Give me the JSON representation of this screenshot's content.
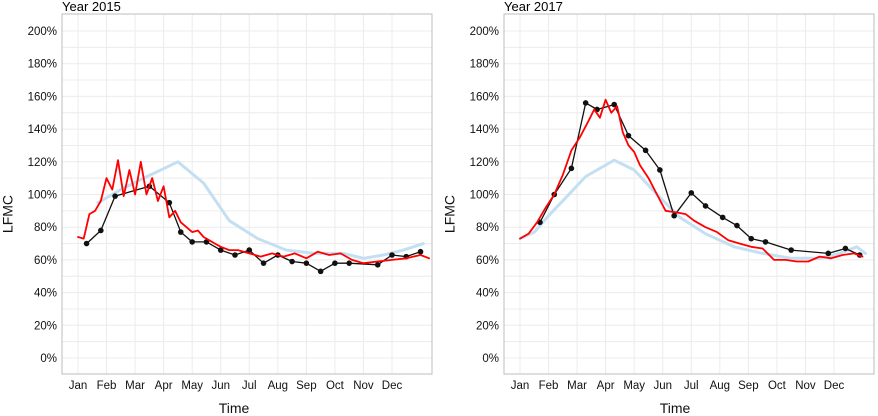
{
  "chart_data": [
    {
      "type": "line",
      "title": "Year 2015",
      "xlabel": "Time",
      "ylabel": "LFMC",
      "ylim": [
        0,
        200
      ],
      "yticks": [
        "0%",
        "20%",
        "40%",
        "60%",
        "80%",
        "100%",
        "120%",
        "140%",
        "160%",
        "180%",
        "200%"
      ],
      "x_months": [
        "Jan",
        "Feb",
        "Mar",
        "Apr",
        "May",
        "Jun",
        "Jul",
        "Aug",
        "Sep",
        "Oct",
        "Nov",
        "Dec"
      ],
      "colors": {
        "observed": "#111111",
        "daily": "#ff0000",
        "climatology": "#c5dff2"
      },
      "series": [
        {
          "key": "observed",
          "x": [
            1.3,
            1.8,
            2.3,
            3.5,
            4.2,
            4.6,
            5.0,
            5.5,
            6.0,
            6.5,
            7.0,
            7.5,
            8.0,
            8.5,
            9.0,
            9.5,
            10.0,
            10.5,
            11.5,
            12.0,
            12.5,
            13.0
          ],
          "y": [
            70,
            78,
            99,
            105,
            95,
            77,
            71,
            71,
            66,
            63,
            66,
            58,
            63,
            59,
            58,
            53,
            58,
            58,
            57,
            63,
            62,
            65
          ]
        },
        {
          "key": "daily",
          "x": [
            1.0,
            1.2,
            1.4,
            1.6,
            1.8,
            2.0,
            2.2,
            2.4,
            2.6,
            2.8,
            3.0,
            3.2,
            3.4,
            3.6,
            3.8,
            4.0,
            4.2,
            4.4,
            4.6,
            4.8,
            5.0,
            5.2,
            5.4,
            5.6,
            5.8,
            6.0,
            6.3,
            6.6,
            7.0,
            7.4,
            7.8,
            8.2,
            8.6,
            9.0,
            9.4,
            9.8,
            10.2,
            10.6,
            11.0,
            11.5,
            12.0,
            12.5,
            13.0,
            13.3
          ],
          "y": [
            74,
            73,
            88,
            90,
            96,
            110,
            103,
            121,
            99,
            115,
            100,
            120,
            100,
            110,
            96,
            105,
            86,
            90,
            83,
            80,
            77,
            78,
            74,
            72,
            70,
            68,
            66,
            66,
            64,
            62,
            64,
            62,
            64,
            61,
            65,
            63,
            64,
            60,
            58,
            59,
            60,
            61,
            63,
            61
          ]
        },
        {
          "key": "climatology",
          "x": [
            1.7,
            2.5,
            3.3,
            4.5,
            5.4,
            6.3,
            7.3,
            8.3,
            9.3,
            10.3,
            11.0,
            11.7,
            12.4,
            13.1
          ],
          "y": [
            95,
            103,
            110,
            120,
            107,
            84,
            73,
            66,
            64,
            64,
            61,
            63,
            66,
            70
          ]
        }
      ]
    },
    {
      "type": "line",
      "title": "Year 2017",
      "xlabel": "Time",
      "ylabel": "LFMC",
      "ylim": [
        0,
        200
      ],
      "yticks": [
        "0%",
        "20%",
        "40%",
        "60%",
        "80%",
        "100%",
        "120%",
        "140%",
        "160%",
        "180%",
        "200%"
      ],
      "x_months": [
        "Jan",
        "Feb",
        "Mar",
        "Apr",
        "May",
        "Jun",
        "Jul",
        "Aug",
        "Sep",
        "Oct",
        "Nov",
        "Dec"
      ],
      "colors": {
        "observed": "#111111",
        "daily": "#ff0000",
        "climatology": "#c5dff2"
      },
      "series": [
        {
          "key": "observed",
          "x": [
            1.7,
            2.2,
            2.8,
            3.3,
            3.7,
            4.3,
            4.8,
            5.4,
            5.9,
            6.4,
            7.0,
            7.5,
            8.1,
            8.6,
            9.1,
            9.6,
            10.5,
            11.8,
            12.4,
            12.9
          ],
          "y": [
            83,
            100,
            116,
            156,
            152,
            155,
            136,
            127,
            115,
            87,
            101,
            93,
            86,
            81,
            73,
            71,
            66,
            64,
            67,
            63
          ]
        },
        {
          "key": "daily",
          "x": [
            1.0,
            1.3,
            1.6,
            1.9,
            2.2,
            2.5,
            2.8,
            3.1,
            3.4,
            3.6,
            3.8,
            4.0,
            4.2,
            4.4,
            4.6,
            4.8,
            5.0,
            5.2,
            5.5,
            5.8,
            6.1,
            6.5,
            6.8,
            7.1,
            7.5,
            7.9,
            8.3,
            8.7,
            9.1,
            9.5,
            9.9,
            10.3,
            10.7,
            11.1,
            11.5,
            11.9,
            12.3,
            12.7,
            13.0
          ],
          "y": [
            73,
            76,
            83,
            92,
            100,
            112,
            127,
            135,
            145,
            152,
            147,
            158,
            150,
            154,
            138,
            130,
            126,
            118,
            110,
            100,
            90,
            89,
            88,
            84,
            80,
            77,
            72,
            70,
            68,
            67,
            60,
            60,
            59,
            59,
            62,
            61,
            63,
            64,
            62
          ]
        },
        {
          "key": "climatology",
          "x": [
            1.0,
            1.5,
            2.0,
            2.6,
            3.3,
            4.3,
            5.0,
            5.8,
            6.6,
            7.5,
            8.5,
            9.5,
            10.5,
            11.5,
            12.2,
            12.8,
            13.1
          ],
          "y": [
            73,
            77,
            87,
            98,
            111,
            121,
            115,
            100,
            86,
            76,
            68,
            64,
            61,
            61,
            64,
            68,
            64
          ]
        }
      ]
    }
  ]
}
